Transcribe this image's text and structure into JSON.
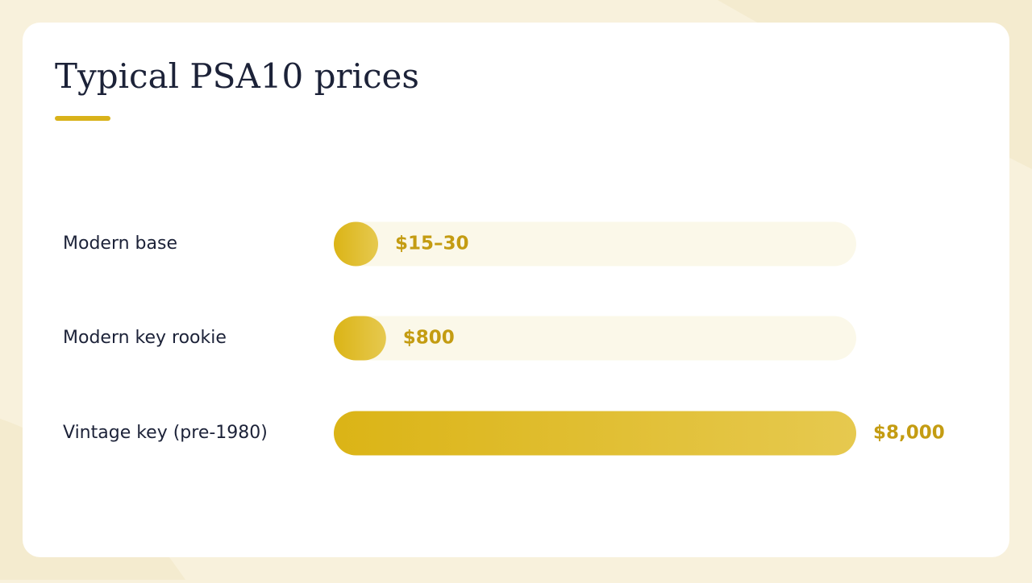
{
  "chart_data": {
    "type": "bar",
    "orientation": "horizontal",
    "title": "Typical PSA10 prices",
    "categories": [
      "Modern base",
      "Modern key rookie",
      "Vintage key (pre-1980)"
    ],
    "values": [
      30,
      800,
      8000
    ],
    "value_labels": [
      "$15–30",
      "$800",
      "$8,000"
    ],
    "color": "#dbb416",
    "xlim": [
      0,
      8000
    ]
  }
}
